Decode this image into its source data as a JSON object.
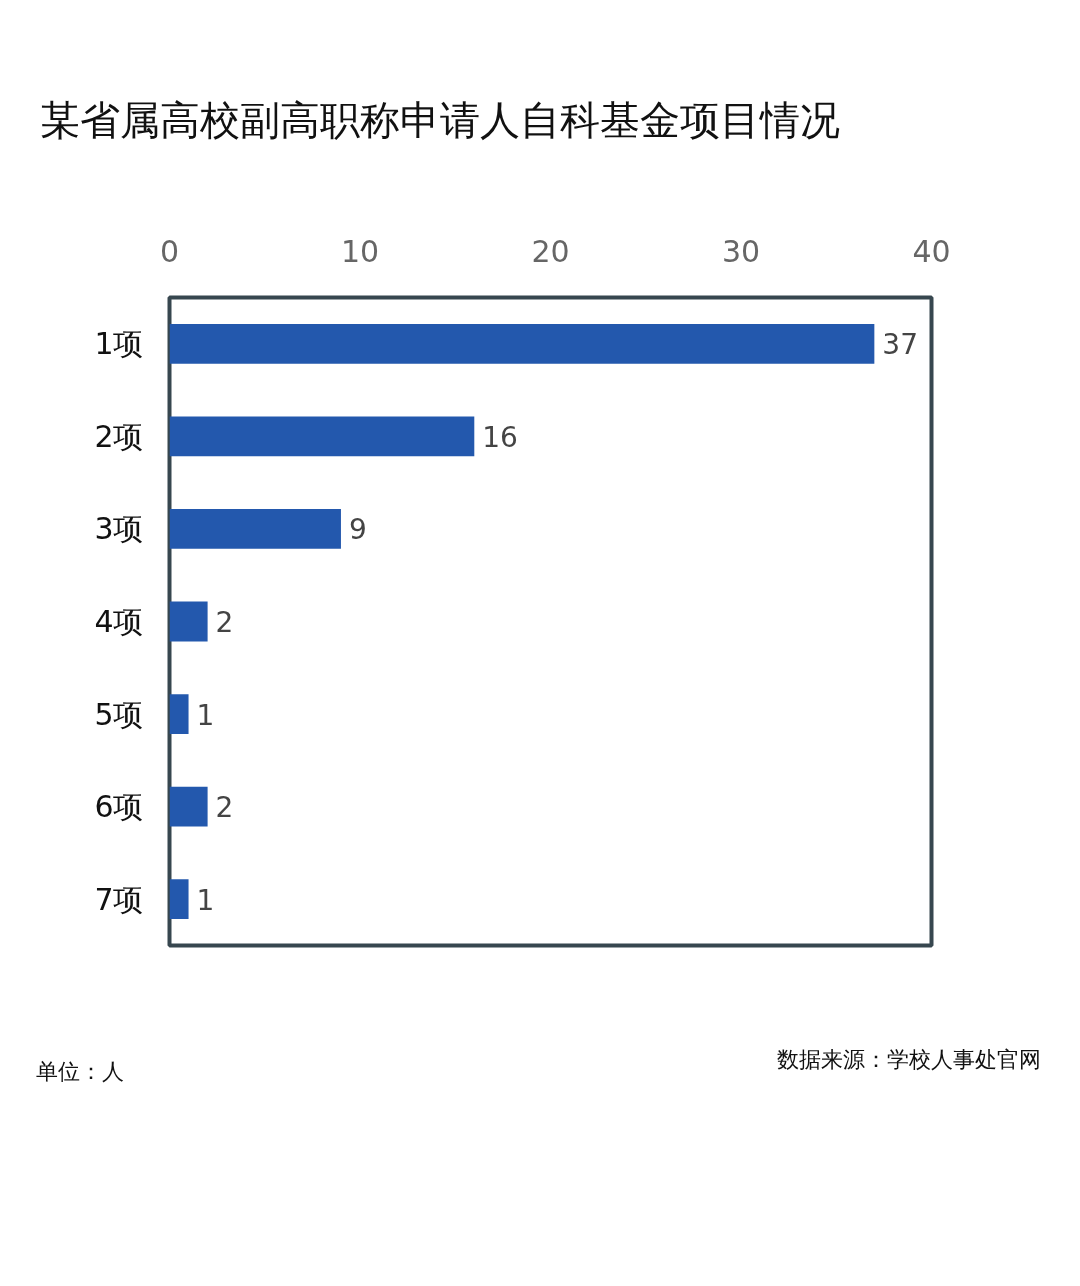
{
  "chart_data": {
    "type": "bar",
    "orientation": "horizontal",
    "title": "某省属高校副高职称申请人自科基金项目情况",
    "categories": [
      "1项",
      "2项",
      "3项",
      "4项",
      "5项",
      "6项",
      "7项"
    ],
    "values": [
      37,
      16,
      9,
      2,
      1,
      2,
      1
    ],
    "color": "#2358ad",
    "xlim": [
      0,
      40
    ],
    "xticks": [
      0,
      10,
      20,
      30,
      40
    ],
    "grid": false,
    "data_labels": true,
    "annotations": [
      "单位：人",
      "数据来源：学校人事处官网"
    ]
  }
}
